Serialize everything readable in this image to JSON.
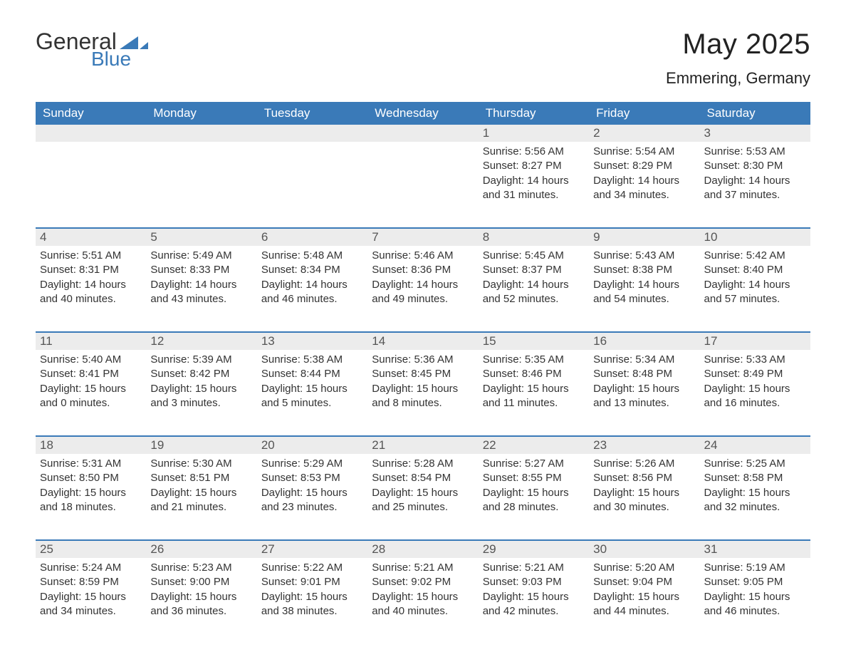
{
  "logo": {
    "text_general": "General",
    "text_blue": "Blue",
    "tri_color": "#3a7ab8"
  },
  "title": {
    "month_year": "May 2025",
    "location": "Emmering, Germany"
  },
  "colors": {
    "header_bg": "#3a7ab8",
    "header_text": "#ffffff",
    "daynum_bg": "#ececec",
    "week_border": "#3a7ab8",
    "text": "#333333"
  },
  "weekdays": [
    "Sunday",
    "Monday",
    "Tuesday",
    "Wednesday",
    "Thursday",
    "Friday",
    "Saturday"
  ],
  "weeks": [
    [
      null,
      null,
      null,
      null,
      {
        "num": "1",
        "sunrise": "Sunrise: 5:56 AM",
        "sunset": "Sunset: 8:27 PM",
        "daylight": "Daylight: 14 hours and 31 minutes."
      },
      {
        "num": "2",
        "sunrise": "Sunrise: 5:54 AM",
        "sunset": "Sunset: 8:29 PM",
        "daylight": "Daylight: 14 hours and 34 minutes."
      },
      {
        "num": "3",
        "sunrise": "Sunrise: 5:53 AM",
        "sunset": "Sunset: 8:30 PM",
        "daylight": "Daylight: 14 hours and 37 minutes."
      }
    ],
    [
      {
        "num": "4",
        "sunrise": "Sunrise: 5:51 AM",
        "sunset": "Sunset: 8:31 PM",
        "daylight": "Daylight: 14 hours and 40 minutes."
      },
      {
        "num": "5",
        "sunrise": "Sunrise: 5:49 AM",
        "sunset": "Sunset: 8:33 PM",
        "daylight": "Daylight: 14 hours and 43 minutes."
      },
      {
        "num": "6",
        "sunrise": "Sunrise: 5:48 AM",
        "sunset": "Sunset: 8:34 PM",
        "daylight": "Daylight: 14 hours and 46 minutes."
      },
      {
        "num": "7",
        "sunrise": "Sunrise: 5:46 AM",
        "sunset": "Sunset: 8:36 PM",
        "daylight": "Daylight: 14 hours and 49 minutes."
      },
      {
        "num": "8",
        "sunrise": "Sunrise: 5:45 AM",
        "sunset": "Sunset: 8:37 PM",
        "daylight": "Daylight: 14 hours and 52 minutes."
      },
      {
        "num": "9",
        "sunrise": "Sunrise: 5:43 AM",
        "sunset": "Sunset: 8:38 PM",
        "daylight": "Daylight: 14 hours and 54 minutes."
      },
      {
        "num": "10",
        "sunrise": "Sunrise: 5:42 AM",
        "sunset": "Sunset: 8:40 PM",
        "daylight": "Daylight: 14 hours and 57 minutes."
      }
    ],
    [
      {
        "num": "11",
        "sunrise": "Sunrise: 5:40 AM",
        "sunset": "Sunset: 8:41 PM",
        "daylight": "Daylight: 15 hours and 0 minutes."
      },
      {
        "num": "12",
        "sunrise": "Sunrise: 5:39 AM",
        "sunset": "Sunset: 8:42 PM",
        "daylight": "Daylight: 15 hours and 3 minutes."
      },
      {
        "num": "13",
        "sunrise": "Sunrise: 5:38 AM",
        "sunset": "Sunset: 8:44 PM",
        "daylight": "Daylight: 15 hours and 5 minutes."
      },
      {
        "num": "14",
        "sunrise": "Sunrise: 5:36 AM",
        "sunset": "Sunset: 8:45 PM",
        "daylight": "Daylight: 15 hours and 8 minutes."
      },
      {
        "num": "15",
        "sunrise": "Sunrise: 5:35 AM",
        "sunset": "Sunset: 8:46 PM",
        "daylight": "Daylight: 15 hours and 11 minutes."
      },
      {
        "num": "16",
        "sunrise": "Sunrise: 5:34 AM",
        "sunset": "Sunset: 8:48 PM",
        "daylight": "Daylight: 15 hours and 13 minutes."
      },
      {
        "num": "17",
        "sunrise": "Sunrise: 5:33 AM",
        "sunset": "Sunset: 8:49 PM",
        "daylight": "Daylight: 15 hours and 16 minutes."
      }
    ],
    [
      {
        "num": "18",
        "sunrise": "Sunrise: 5:31 AM",
        "sunset": "Sunset: 8:50 PM",
        "daylight": "Daylight: 15 hours and 18 minutes."
      },
      {
        "num": "19",
        "sunrise": "Sunrise: 5:30 AM",
        "sunset": "Sunset: 8:51 PM",
        "daylight": "Daylight: 15 hours and 21 minutes."
      },
      {
        "num": "20",
        "sunrise": "Sunrise: 5:29 AM",
        "sunset": "Sunset: 8:53 PM",
        "daylight": "Daylight: 15 hours and 23 minutes."
      },
      {
        "num": "21",
        "sunrise": "Sunrise: 5:28 AM",
        "sunset": "Sunset: 8:54 PM",
        "daylight": "Daylight: 15 hours and 25 minutes."
      },
      {
        "num": "22",
        "sunrise": "Sunrise: 5:27 AM",
        "sunset": "Sunset: 8:55 PM",
        "daylight": "Daylight: 15 hours and 28 minutes."
      },
      {
        "num": "23",
        "sunrise": "Sunrise: 5:26 AM",
        "sunset": "Sunset: 8:56 PM",
        "daylight": "Daylight: 15 hours and 30 minutes."
      },
      {
        "num": "24",
        "sunrise": "Sunrise: 5:25 AM",
        "sunset": "Sunset: 8:58 PM",
        "daylight": "Daylight: 15 hours and 32 minutes."
      }
    ],
    [
      {
        "num": "25",
        "sunrise": "Sunrise: 5:24 AM",
        "sunset": "Sunset: 8:59 PM",
        "daylight": "Daylight: 15 hours and 34 minutes."
      },
      {
        "num": "26",
        "sunrise": "Sunrise: 5:23 AM",
        "sunset": "Sunset: 9:00 PM",
        "daylight": "Daylight: 15 hours and 36 minutes."
      },
      {
        "num": "27",
        "sunrise": "Sunrise: 5:22 AM",
        "sunset": "Sunset: 9:01 PM",
        "daylight": "Daylight: 15 hours and 38 minutes."
      },
      {
        "num": "28",
        "sunrise": "Sunrise: 5:21 AM",
        "sunset": "Sunset: 9:02 PM",
        "daylight": "Daylight: 15 hours and 40 minutes."
      },
      {
        "num": "29",
        "sunrise": "Sunrise: 5:21 AM",
        "sunset": "Sunset: 9:03 PM",
        "daylight": "Daylight: 15 hours and 42 minutes."
      },
      {
        "num": "30",
        "sunrise": "Sunrise: 5:20 AM",
        "sunset": "Sunset: 9:04 PM",
        "daylight": "Daylight: 15 hours and 44 minutes."
      },
      {
        "num": "31",
        "sunrise": "Sunrise: 5:19 AM",
        "sunset": "Sunset: 9:05 PM",
        "daylight": "Daylight: 15 hours and 46 minutes."
      }
    ]
  ]
}
